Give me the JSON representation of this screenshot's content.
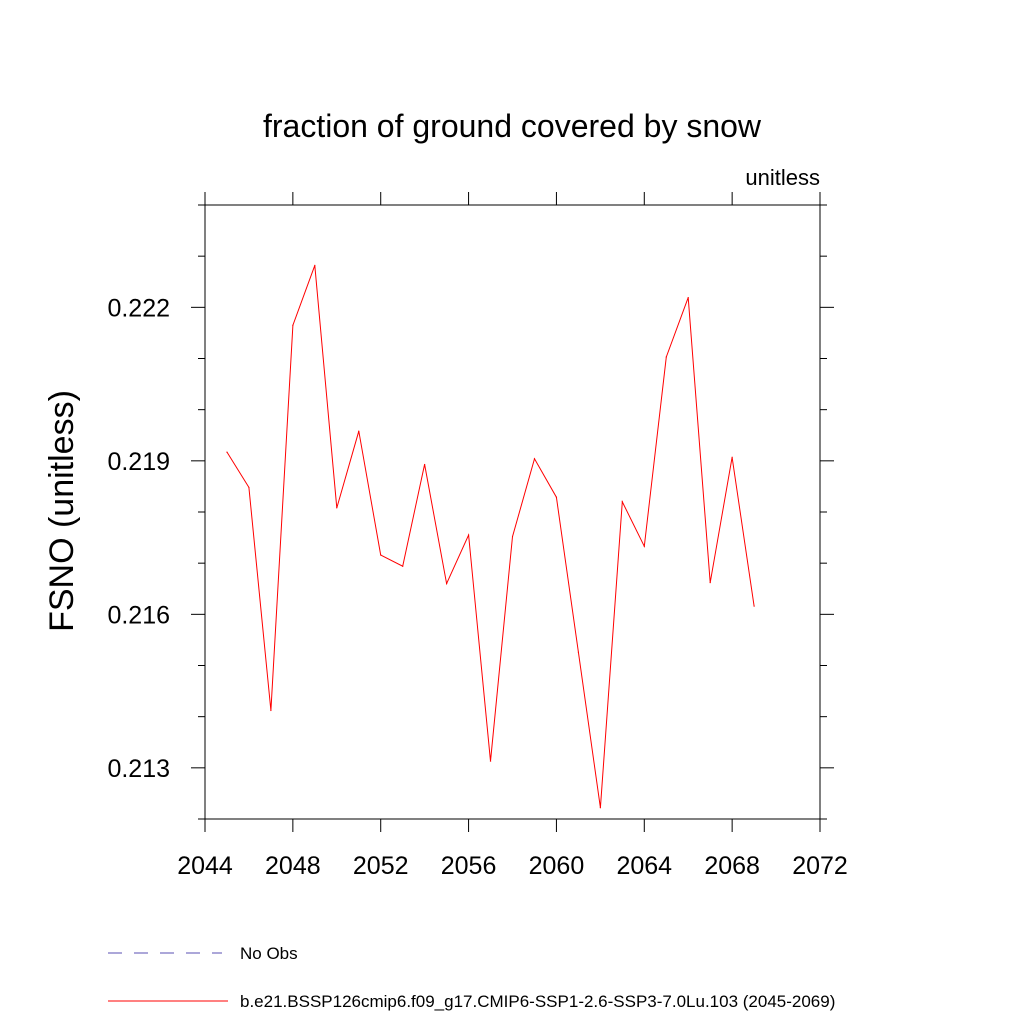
{
  "chart_data": {
    "type": "line",
    "title": "fraction of ground covered by snow",
    "units_label": "unitless",
    "xlabel": "",
    "ylabel": "FSNO  (unitless)",
    "xlim": [
      2044,
      2072
    ],
    "ylim": [
      0.212,
      0.224
    ],
    "x_ticks": [
      2044,
      2048,
      2052,
      2056,
      2060,
      2064,
      2068,
      2072
    ],
    "x_tick_labels": [
      "2044",
      "2048",
      "2052",
      "2056",
      "2060",
      "2064",
      "2068",
      "2072"
    ],
    "y_ticks": [
      0.213,
      0.216,
      0.219,
      0.222
    ],
    "y_tick_labels": [
      "0.213",
      "0.216",
      "0.219",
      "0.222"
    ],
    "y_minor_step": 0.001,
    "x": [
      2045,
      2046,
      2047,
      2048,
      2049,
      2050,
      2051,
      2052,
      2053,
      2054,
      2055,
      2056,
      2057,
      2058,
      2059,
      2060,
      2061,
      2062,
      2063,
      2064,
      2065,
      2066,
      2067,
      2068,
      2069
    ],
    "series": [
      {
        "name": "b.e21.BSSP126cmip6.f09_g17.CMIP6-SSP1-2.6-SSP3-7.0Lu.103 (2045-2069)",
        "color": "#ff0000",
        "dash": "solid",
        "values": [
          0.21917,
          0.21848,
          0.21412,
          0.22165,
          0.22282,
          0.21808,
          0.21958,
          0.21716,
          0.21694,
          0.21893,
          0.2166,
          0.21755,
          0.21313,
          0.21752,
          0.21904,
          0.21829,
          0.21526,
          0.21222,
          0.2182,
          0.21733,
          0.22103,
          0.22219,
          0.21662,
          0.21907,
          0.21616
        ]
      }
    ],
    "legend": [
      {
        "label": "No Obs",
        "color": "#5a4fb3",
        "dash": "dashed"
      },
      {
        "label": "b.e21.BSSP126cmip6.f09_g17.CMIP6-SSP1-2.6-SSP3-7.0Lu.103 (2045-2069)",
        "color": "#ff0000",
        "dash": "solid"
      }
    ]
  }
}
